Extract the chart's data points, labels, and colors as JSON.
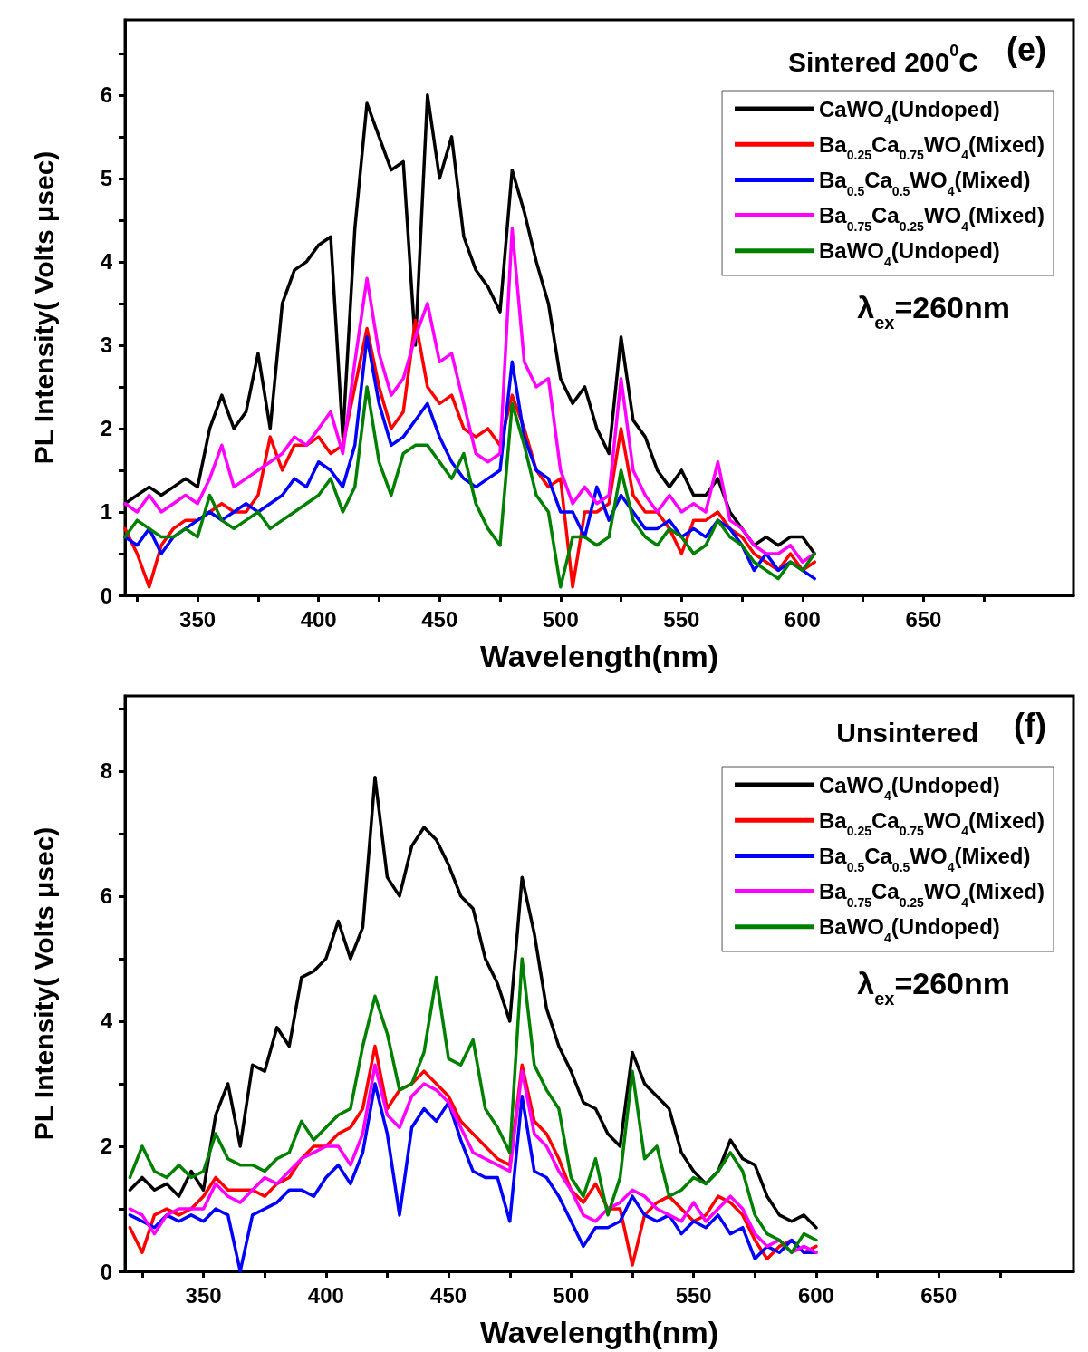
{
  "chart_data": [
    {
      "type": "line",
      "title": "Sintered 200$^{0}$C",
      "xlabel": "Wavelength(nm)",
      "ylabel": "PL Intensity( Volts μsec)",
      "annotations": [
        "(e)",
        "λ$_{ex}$=260nm"
      ],
      "legend": "top right",
      "marker": "none",
      "xlim": [
        320,
        712
      ],
      "ylim": [
        0,
        6.9
      ],
      "xticks": [
        {
          "value": 325,
          "label": null
        },
        350,
        {
          "value": 375,
          "label": null
        },
        400,
        {
          "value": 425,
          "label": null
        },
        450,
        {
          "value": 475,
          "label": null
        },
        500,
        {
          "value": 525,
          "label": null
        },
        550,
        {
          "value": 575,
          "label": null
        },
        600,
        {
          "value": 625,
          "label": null
        },
        650,
        {
          "value": 675,
          "label": null
        }
      ],
      "yticks": [
        0,
        {
          "value": 0.5,
          "label": null
        },
        1,
        {
          "value": 1.5,
          "label": null
        },
        2,
        {
          "value": 2.5,
          "label": null
        },
        3,
        {
          "value": 3.5,
          "label": null
        },
        4,
        {
          "value": 4.5,
          "label": null
        },
        5,
        {
          "value": 5.5,
          "label": null
        },
        6,
        {
          "value": 6.5,
          "label": null
        }
      ],
      "x": [
        320,
        325,
        330,
        335,
        340,
        345,
        350,
        355,
        360,
        365,
        370,
        375,
        380,
        385,
        390,
        395,
        400,
        405,
        410,
        415,
        420,
        425,
        430,
        435,
        440,
        445,
        450,
        455,
        460,
        465,
        470,
        475,
        480,
        485,
        490,
        495,
        500,
        505,
        510,
        515,
        520,
        525,
        530,
        535,
        540,
        545,
        550,
        555,
        560,
        565,
        570,
        575,
        580,
        585,
        590,
        595,
        600,
        605
      ],
      "series": [
        {
          "name": "CaWO$_{4}$(Undoped)",
          "color": "#000000",
          "values": [
            1.1,
            1.2,
            1.3,
            1.2,
            1.3,
            1.4,
            1.3,
            2.0,
            2.4,
            2.0,
            2.2,
            2.9,
            2.0,
            3.5,
            3.9,
            4.0,
            4.2,
            4.3,
            1.9,
            4.4,
            5.9,
            5.5,
            5.1,
            5.2,
            3.0,
            6.0,
            5.0,
            5.5,
            4.3,
            3.9,
            3.7,
            3.4,
            5.1,
            4.6,
            4.0,
            3.5,
            2.6,
            2.3,
            2.5,
            2.0,
            1.7,
            3.1,
            2.1,
            1.9,
            1.5,
            1.3,
            1.5,
            1.2,
            1.2,
            1.4,
            1.0,
            0.8,
            0.6,
            0.7,
            0.6,
            0.7,
            0.7,
            0.5
          ]
        },
        {
          "name": "Ba$_{0.25}$Ca$_{0.75}$WO$_{4}$(Mixed)",
          "color": "#ff0000",
          "values": [
            0.8,
            0.5,
            0.1,
            0.6,
            0.8,
            0.9,
            0.9,
            1.0,
            1.1,
            1.0,
            1.0,
            1.2,
            1.9,
            1.5,
            1.8,
            1.8,
            1.9,
            1.7,
            1.8,
            2.5,
            3.2,
            2.5,
            2.0,
            2.2,
            3.3,
            2.5,
            2.3,
            2.4,
            2.0,
            1.9,
            2.0,
            1.8,
            2.4,
            2.0,
            1.5,
            1.3,
            1.4,
            0.1,
            1.0,
            1.0,
            1.1,
            2.0,
            1.2,
            1.0,
            1.0,
            0.8,
            0.5,
            0.9,
            0.9,
            1.0,
            0.8,
            0.7,
            0.5,
            0.4,
            0.3,
            0.5,
            0.3,
            0.4
          ]
        },
        {
          "name": "Ba$_{0.5}$Ca$_{0.5}$WO$_{4}$(Mixed)",
          "color": "#0000ff",
          "values": [
            0.7,
            0.6,
            0.8,
            0.5,
            0.7,
            0.8,
            0.9,
            1.0,
            0.9,
            1.0,
            1.1,
            1.0,
            1.1,
            1.2,
            1.4,
            1.3,
            1.6,
            1.5,
            1.3,
            1.8,
            3.1,
            2.3,
            1.8,
            1.9,
            2.1,
            2.3,
            1.9,
            1.6,
            1.4,
            1.3,
            1.4,
            1.5,
            2.8,
            1.9,
            1.5,
            1.4,
            1.0,
            1.0,
            0.7,
            1.3,
            0.9,
            1.2,
            1.0,
            0.8,
            0.8,
            0.9,
            0.7,
            0.8,
            0.7,
            0.9,
            0.8,
            0.6,
            0.3,
            0.5,
            0.3,
            0.4,
            0.3,
            0.2
          ]
        },
        {
          "name": "Ba$_{0.75}$Ca$_{0.25}$WO$_{4}$(Mixed)",
          "color": "#ff00ff",
          "values": [
            1.1,
            1.0,
            1.2,
            1.0,
            1.1,
            1.2,
            1.1,
            1.4,
            1.8,
            1.3,
            1.4,
            1.5,
            1.6,
            1.7,
            1.9,
            1.8,
            2.0,
            2.2,
            1.7,
            2.8,
            3.8,
            2.9,
            2.4,
            2.6,
            3.1,
            3.5,
            2.8,
            2.9,
            2.3,
            1.7,
            1.6,
            1.7,
            4.4,
            2.8,
            2.5,
            2.6,
            1.5,
            1.1,
            1.3,
            1.1,
            1.2,
            2.6,
            1.5,
            1.2,
            1.0,
            1.2,
            1.0,
            1.1,
            1.0,
            1.6,
            0.9,
            0.8,
            0.6,
            0.5,
            0.5,
            0.6,
            0.4,
            0.5
          ]
        },
        {
          "name": "BaWO$_{4}$(Undoped)",
          "color": "#008000",
          "values": [
            0.7,
            0.9,
            0.8,
            0.7,
            0.7,
            0.8,
            0.7,
            1.2,
            0.9,
            0.8,
            0.9,
            1.0,
            0.8,
            0.9,
            1.0,
            1.1,
            1.2,
            1.4,
            1.0,
            1.3,
            2.5,
            1.6,
            1.2,
            1.7,
            1.8,
            1.8,
            1.6,
            1.4,
            1.7,
            1.1,
            0.8,
            0.6,
            2.3,
            1.8,
            1.2,
            1.0,
            0.1,
            0.7,
            0.7,
            0.6,
            0.7,
            1.5,
            0.9,
            0.7,
            0.6,
            0.8,
            0.7,
            0.5,
            0.6,
            0.9,
            0.7,
            0.6,
            0.4,
            0.3,
            0.2,
            0.4,
            0.3,
            0.5
          ]
        }
      ]
    },
    {
      "type": "line",
      "title": "Unsintered",
      "xlabel": "Wavelength(nm)",
      "ylabel": "PL Intensity( Volts μsec)",
      "annotations": [
        "(f)",
        "λ$_{ex}$=260nm"
      ],
      "legend": "top right",
      "marker": "none",
      "xlim": [
        318,
        705
      ],
      "ylim": [
        0,
        9.2
      ],
      "xticks": [
        {
          "value": 325,
          "label": null
        },
        350,
        {
          "value": 375,
          "label": null
        },
        400,
        {
          "value": 425,
          "label": null
        },
        450,
        {
          "value": 475,
          "label": null
        },
        500,
        {
          "value": 525,
          "label": null
        },
        550,
        {
          "value": 575,
          "label": null
        },
        600,
        {
          "value": 625,
          "label": null
        },
        650,
        {
          "value": 675,
          "label": null
        }
      ],
      "yticks": [
        0,
        {
          "value": 1,
          "label": null
        },
        2,
        {
          "value": 3,
          "label": null
        },
        4,
        {
          "value": 5,
          "label": null
        },
        6,
        {
          "value": 7,
          "label": null
        },
        8,
        {
          "value": 9,
          "label": null
        }
      ],
      "x": [
        320,
        325,
        330,
        335,
        340,
        345,
        350,
        355,
        360,
        365,
        370,
        375,
        380,
        385,
        390,
        395,
        400,
        405,
        410,
        415,
        420,
        425,
        430,
        435,
        440,
        445,
        450,
        455,
        460,
        465,
        470,
        475,
        480,
        485,
        490,
        495,
        500,
        505,
        510,
        515,
        520,
        525,
        530,
        535,
        540,
        545,
        550,
        555,
        560,
        565,
        570,
        575,
        580,
        585,
        590,
        595,
        600
      ],
      "series": [
        {
          "name": "CaWO$_{4}$(Undoped)",
          "color": "#000000",
          "values": [
            1.3,
            1.5,
            1.3,
            1.4,
            1.2,
            1.6,
            1.3,
            2.5,
            3.0,
            2.0,
            3.3,
            3.2,
            3.9,
            3.6,
            4.7,
            4.8,
            5.0,
            5.6,
            5.0,
            5.5,
            7.9,
            6.3,
            6.0,
            6.8,
            7.1,
            6.9,
            6.5,
            6.0,
            5.8,
            5.0,
            4.6,
            4.0,
            6.3,
            5.4,
            4.2,
            3.6,
            3.2,
            2.7,
            2.6,
            2.2,
            2.0,
            3.5,
            3.0,
            2.8,
            2.6,
            1.9,
            1.6,
            1.4,
            1.6,
            2.1,
            1.8,
            1.7,
            1.2,
            0.9,
            0.8,
            0.9,
            0.7
          ]
        },
        {
          "name": "Ba$_{0.25}$Ca$_{0.75}$WO$_{4}$(Mixed)",
          "color": "#ff0000",
          "values": [
            0.7,
            0.3,
            0.9,
            1.0,
            0.9,
            1.0,
            1.2,
            1.5,
            1.3,
            1.3,
            1.3,
            1.2,
            1.4,
            1.5,
            1.8,
            2.0,
            2.0,
            2.2,
            2.3,
            2.6,
            3.6,
            2.6,
            2.9,
            3.0,
            3.2,
            3.0,
            2.8,
            2.4,
            2.2,
            2.0,
            1.8,
            1.7,
            3.3,
            2.4,
            2.2,
            1.8,
            1.3,
            1.1,
            1.4,
            1.0,
            1.0,
            0.1,
            0.9,
            1.1,
            1.2,
            1.0,
            0.8,
            0.9,
            1.2,
            1.1,
            0.9,
            0.5,
            0.2,
            0.4,
            0.5,
            0.3,
            0.4
          ]
        },
        {
          "name": "Ba$_{0.5}$Ca$_{0.5}$WO$_{4}$(Mixed)",
          "color": "#0000ff",
          "values": [
            0.9,
            0.8,
            0.7,
            0.9,
            0.8,
            0.9,
            0.8,
            1.0,
            0.9,
            0.0,
            0.9,
            1.0,
            1.1,
            1.3,
            1.3,
            1.2,
            1.5,
            1.7,
            1.4,
            1.9,
            3.0,
            2.2,
            0.9,
            2.3,
            2.6,
            2.4,
            2.7,
            2.1,
            1.6,
            1.5,
            1.5,
            0.8,
            2.8,
            1.6,
            1.5,
            1.2,
            0.8,
            0.4,
            0.7,
            0.7,
            0.8,
            1.2,
            0.9,
            0.8,
            0.9,
            0.6,
            0.8,
            0.7,
            0.9,
            0.6,
            0.7,
            0.2,
            0.4,
            0.3,
            0.5,
            0.3,
            0.3
          ]
        },
        {
          "name": "Ba$_{0.75}$Ca$_{0.25}$WO$_{4}$(Mixed)",
          "color": "#ff00ff",
          "values": [
            1.0,
            0.9,
            0.6,
            0.9,
            1.0,
            1.0,
            1.0,
            1.4,
            1.2,
            1.1,
            1.3,
            1.5,
            1.4,
            1.6,
            1.8,
            1.9,
            2.0,
            2.0,
            1.7,
            2.2,
            3.3,
            2.5,
            2.3,
            2.8,
            3.0,
            2.9,
            2.7,
            2.3,
            1.9,
            1.8,
            1.7,
            1.6,
            3.2,
            2.2,
            2.0,
            1.6,
            1.3,
            0.9,
            0.8,
            1.0,
            1.1,
            1.3,
            1.2,
            1.0,
            0.9,
            0.8,
            1.1,
            0.8,
            1.0,
            1.2,
            1.0,
            0.6,
            0.4,
            0.5,
            0.3,
            0.4,
            0.3
          ]
        },
        {
          "name": "BaWO$_{4}$(Undoped)",
          "color": "#008000",
          "values": [
            1.5,
            2.0,
            1.6,
            1.5,
            1.7,
            1.5,
            1.6,
            2.2,
            1.8,
            1.7,
            1.7,
            1.6,
            1.8,
            1.9,
            2.4,
            2.1,
            2.3,
            2.5,
            2.6,
            3.6,
            4.4,
            3.8,
            2.9,
            3.0,
            3.5,
            4.7,
            3.4,
            3.3,
            3.7,
            2.6,
            2.3,
            1.9,
            5.0,
            3.3,
            2.9,
            2.6,
            1.5,
            1.2,
            1.8,
            0.9,
            1.5,
            3.2,
            1.8,
            2.0,
            1.2,
            1.3,
            1.5,
            1.4,
            1.6,
            1.9,
            1.6,
            0.9,
            0.6,
            0.5,
            0.3,
            0.6,
            0.5
          ]
        }
      ]
    }
  ]
}
